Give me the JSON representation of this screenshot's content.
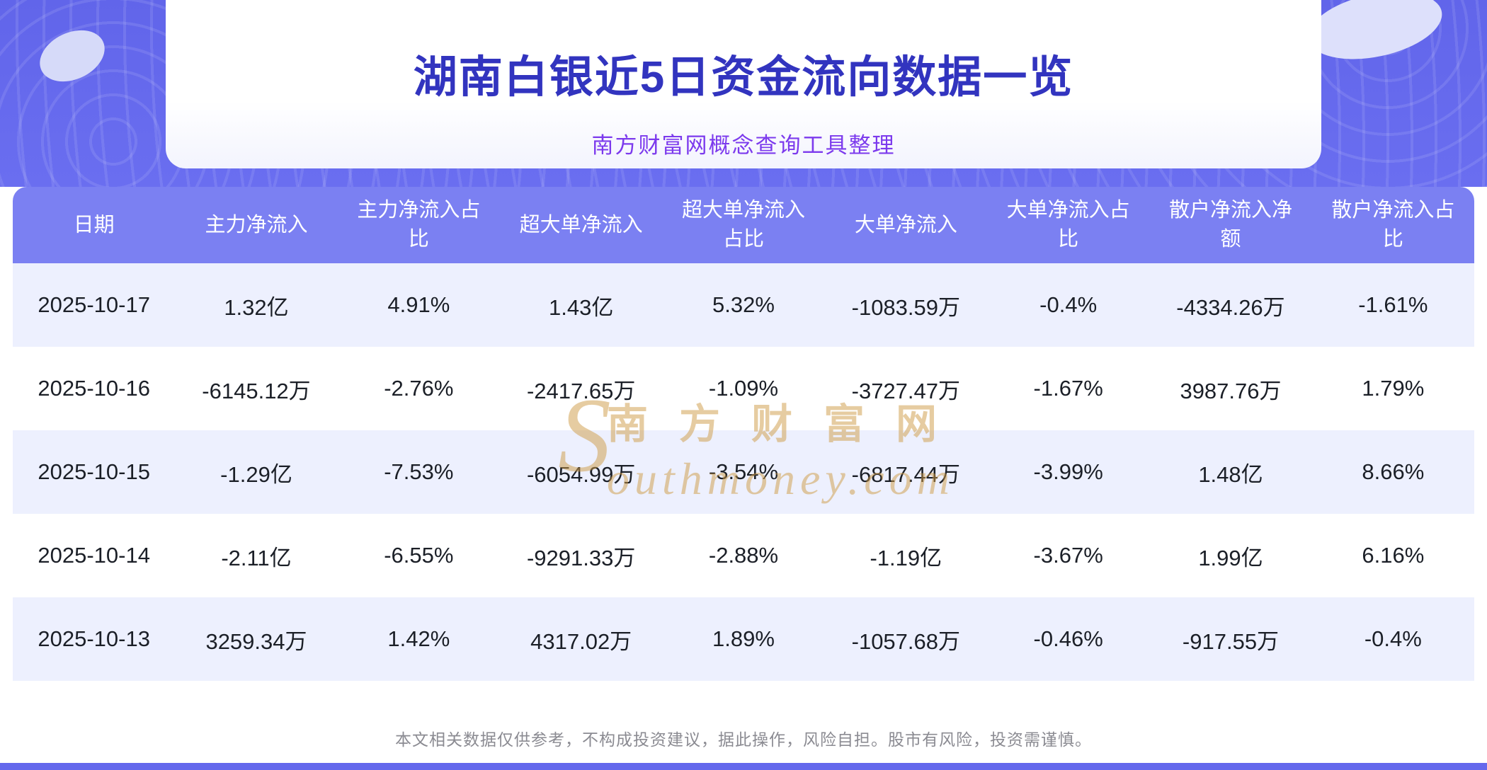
{
  "page": {
    "title": "湖南白银近5日资金流向数据一览",
    "subtitle": "南方财富网概念查询工具整理",
    "disclaimer": "本文相关数据仅供参考，不构成投资建议，据此操作，风险自担。股市有风险，投资需谨慎。"
  },
  "watermark": {
    "s": "S",
    "cn": "南方财富网",
    "en": "outhmoney.com"
  },
  "colors": {
    "banner": "#6468ec",
    "table_header_bg": "#7b80f2",
    "row_alt_bg": "#edf0fe",
    "title_text": "#3234bf",
    "subtitle_text": "#7c3aed",
    "watermark_gold": "#cf9b45"
  },
  "chart_data": {
    "type": "table",
    "title": "湖南白银近5日资金流向数据一览",
    "subtitle": "南方财富网概念查询工具整理",
    "columns": [
      "日期",
      "主力净流入",
      "主力净流入占比",
      "超大单净流入",
      "超大单净流入占比",
      "大单净流入",
      "大单净流入占比",
      "散户净流入净额",
      "散户净流入占比"
    ],
    "rows": [
      [
        "2025-10-17",
        "1.32亿",
        "4.91%",
        "1.43亿",
        "5.32%",
        "-1083.59万",
        "-0.4%",
        "-4334.26万",
        "-1.61%"
      ],
      [
        "2025-10-16",
        "-6145.12万",
        "-2.76%",
        "-2417.65万",
        "-1.09%",
        "-3727.47万",
        "-1.67%",
        "3987.76万",
        "1.79%"
      ],
      [
        "2025-10-15",
        "-1.29亿",
        "-7.53%",
        "-6054.99万",
        "-3.54%",
        "-6817.44万",
        "-3.99%",
        "1.48亿",
        "8.66%"
      ],
      [
        "2025-10-14",
        "-2.11亿",
        "-6.55%",
        "-9291.33万",
        "-2.88%",
        "-1.19亿",
        "-3.67%",
        "1.99亿",
        "6.16%"
      ],
      [
        "2025-10-13",
        "3259.34万",
        "1.42%",
        "4317.02万",
        "1.89%",
        "-1057.68万",
        "-0.46%",
        "-917.55万",
        "-0.4%"
      ]
    ]
  }
}
